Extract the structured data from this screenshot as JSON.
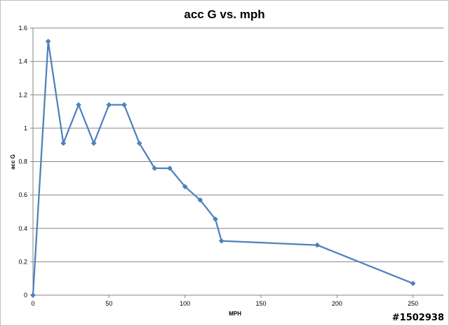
{
  "chart_data": {
    "type": "line",
    "title": "acc G vs. mph",
    "xlabel": "MPH",
    "ylabel": "acc G",
    "xlim": [
      0,
      270
    ],
    "ylim": [
      0,
      1.6
    ],
    "xticks": [
      0,
      50,
      100,
      150,
      200,
      250
    ],
    "yticks": [
      0,
      0.2,
      0.4,
      0.6,
      0.8,
      1,
      1.2,
      1.4,
      1.6
    ],
    "grid": "horizontal",
    "legend": "none",
    "series": [
      {
        "color": "#4f81bd",
        "marker": "diamond",
        "x": [
          0,
          10,
          20,
          30,
          40,
          50,
          60,
          70,
          80,
          90,
          100,
          110,
          120,
          124,
          187,
          250
        ],
        "y": [
          0,
          1.52,
          0.91,
          1.14,
          0.91,
          1.14,
          1.14,
          0.91,
          0.76,
          0.76,
          0.65,
          0.57,
          0.455,
          0.325,
          0.3,
          0.07
        ]
      }
    ]
  },
  "watermark": "#1502938"
}
